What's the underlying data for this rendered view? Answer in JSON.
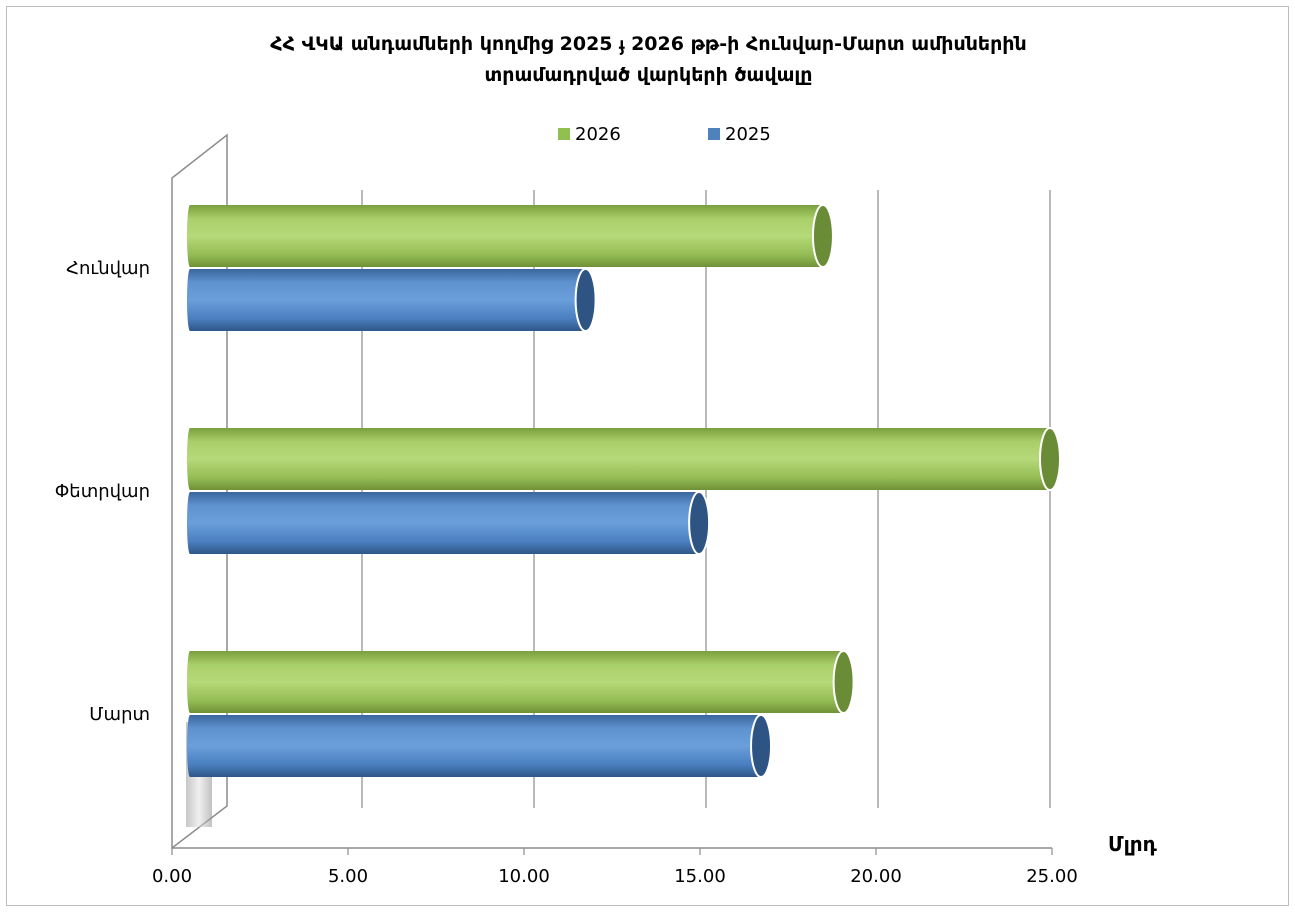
{
  "chart_data": {
    "type": "bar",
    "orientation": "horizontal",
    "title_lines": [
      "ՀՀ ՎԿԱ անդամների կողմից 2025 ֈ 2026 թթ-ի Հունվար-Մարտ ամիսներին",
      "տրամադրված վարկերի ծավալը"
    ],
    "categories": [
      "Հունվար",
      "Փետրվար",
      "Մարտ"
    ],
    "series": [
      {
        "name": "2026",
        "color": "#92c050",
        "values": [
          18.4,
          25.0,
          19.0
        ]
      },
      {
        "name": "2025",
        "color": "#4f81bd",
        "values": [
          11.5,
          14.8,
          16.6
        ]
      }
    ],
    "xlim": [
      0,
      25
    ],
    "xticks": [
      "0.00",
      "5.00",
      "10.00",
      "15.00",
      "20.00",
      "25.00"
    ],
    "unit_label": "Մլրդ",
    "legend_position": "top",
    "gridlines": true
  }
}
